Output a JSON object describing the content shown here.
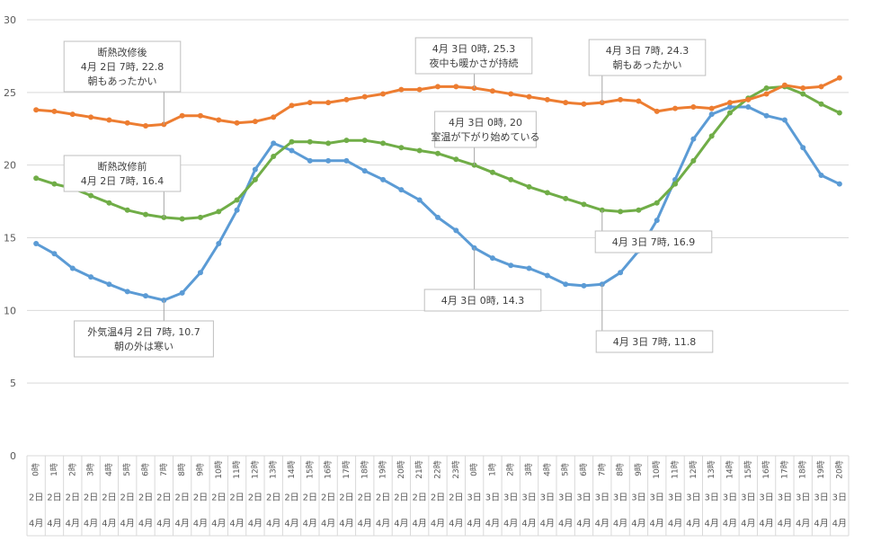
{
  "chart_data": {
    "type": "line",
    "y_axis": {
      "min": 0,
      "max": 30,
      "step": 5,
      "ticks": [
        "0",
        "5",
        "10",
        "15",
        "20",
        "25",
        "30"
      ]
    },
    "grid": "horizontal",
    "legend": "none",
    "category_levels": {
      "hour": [
        "0時",
        "1時",
        "2時",
        "3時",
        "4時",
        "5時",
        "6時",
        "7時",
        "8時",
        "9時",
        "10時",
        "11時",
        "12時",
        "13時",
        "14時",
        "15時",
        "16時",
        "17時",
        "18時",
        "19時",
        "20時",
        "21時",
        "22時",
        "23時",
        "0時",
        "1時",
        "2時",
        "3時",
        "4時",
        "5時",
        "6時",
        "7時",
        "8時",
        "9時",
        "10時",
        "11時",
        "12時",
        "13時",
        "14時",
        "15時",
        "16時",
        "17時",
        "18時",
        "19時",
        "20時"
      ],
      "day": [
        "2日",
        "2日",
        "2日",
        "2日",
        "2日",
        "2日",
        "2日",
        "2日",
        "2日",
        "2日",
        "2日",
        "2日",
        "2日",
        "2日",
        "2日",
        "2日",
        "2日",
        "2日",
        "2日",
        "2日",
        "2日",
        "2日",
        "2日",
        "2日",
        "3日",
        "3日",
        "3日",
        "3日",
        "3日",
        "3日",
        "3日",
        "3日",
        "3日",
        "3日",
        "3日",
        "3日",
        "3日",
        "3日",
        "3日",
        "3日",
        "3日",
        "3日",
        "3日",
        "3日",
        "3日"
      ],
      "month": [
        "4月",
        "4月",
        "4月",
        "4月",
        "4月",
        "4月",
        "4月",
        "4月",
        "4月",
        "4月",
        "4月",
        "4月",
        "4月",
        "4月",
        "4月",
        "4月",
        "4月",
        "4月",
        "4月",
        "4月",
        "4月",
        "4月",
        "4月",
        "4月",
        "4月",
        "4月",
        "4月",
        "4月",
        "4月",
        "4月",
        "4月",
        "4月",
        "4月",
        "4月",
        "4月",
        "4月",
        "4月",
        "4月",
        "4月",
        "4月",
        "4月",
        "4月",
        "4月",
        "4月",
        "4月"
      ]
    },
    "series": [
      {
        "key": "outdoor",
        "color": "#5b9bd5",
        "values": [
          14.6,
          13.9,
          12.9,
          12.3,
          11.8,
          11.3,
          11.0,
          10.7,
          11.2,
          12.6,
          14.6,
          16.9,
          19.7,
          21.5,
          21.0,
          20.3,
          20.3,
          20.3,
          19.6,
          19.0,
          18.3,
          17.6,
          16.4,
          15.5,
          14.3,
          13.6,
          13.1,
          12.9,
          12.4,
          11.8,
          11.7,
          11.8,
          12.6,
          14.1,
          16.2,
          19.0,
          21.8,
          23.5,
          24.0,
          24.0,
          23.4,
          23.1,
          21.2,
          19.3,
          18.7
        ]
      },
      {
        "key": "before",
        "color": "#70ad47",
        "values": [
          19.1,
          18.7,
          18.4,
          17.9,
          17.4,
          16.9,
          16.6,
          16.4,
          16.3,
          16.4,
          16.8,
          17.6,
          19.0,
          20.6,
          21.6,
          21.6,
          21.5,
          21.7,
          21.7,
          21.5,
          21.2,
          21.0,
          20.8,
          20.4,
          20.0,
          19.5,
          19.0,
          18.5,
          18.1,
          17.7,
          17.3,
          16.9,
          16.8,
          16.9,
          17.4,
          18.7,
          20.3,
          22.0,
          23.6,
          24.6,
          25.3,
          25.4,
          24.9,
          24.2,
          23.6
        ]
      },
      {
        "key": "after",
        "color": "#ed7d31",
        "values": [
          23.8,
          23.7,
          23.5,
          23.3,
          23.1,
          22.9,
          22.7,
          22.8,
          23.4,
          23.4,
          23.1,
          22.9,
          23.0,
          23.3,
          24.1,
          24.3,
          24.3,
          24.5,
          24.7,
          24.9,
          25.2,
          25.2,
          25.4,
          25.4,
          25.3,
          25.1,
          24.9,
          24.7,
          24.5,
          24.3,
          24.2,
          24.3,
          24.5,
          24.4,
          23.7,
          23.9,
          24.0,
          23.9,
          24.3,
          24.5,
          24.9,
          25.5,
          25.3,
          25.4,
          26.0
        ]
      }
    ],
    "annotations": [
      {
        "series": "after",
        "index": 7,
        "lines": [
          "断熱改修後",
          "4月 2日 7時, 22.8",
          "朝もあったかい"
        ]
      },
      {
        "series": "after",
        "index": 24,
        "lines": [
          "4月 3日 0時, 25.3",
          "夜中も暖かさが持続"
        ]
      },
      {
        "series": "after",
        "index": 31,
        "lines": [
          "4月 3日 7時, 24.3",
          "朝もあったかい"
        ]
      },
      {
        "series": "before",
        "index": 7,
        "lines": [
          "断熱改修前",
          "4月 2日 7時, 16.4"
        ]
      },
      {
        "series": "before",
        "index": 24,
        "lines": [
          "4月 3日 0時, 20",
          "室温が下がり始めている"
        ]
      },
      {
        "series": "before",
        "index": 31,
        "lines": [
          "4月 3日 7時, 16.9"
        ]
      },
      {
        "series": "outdoor",
        "index": 7,
        "lines": [
          "外気温4月 2日 7時, 10.7",
          "朝の外は寒い"
        ]
      },
      {
        "series": "outdoor",
        "index": 24,
        "lines": [
          "4月 3日 0時, 14.3"
        ]
      },
      {
        "series": "outdoor",
        "index": 31,
        "lines": [
          "4月 3日 7時, 11.8"
        ]
      }
    ]
  }
}
